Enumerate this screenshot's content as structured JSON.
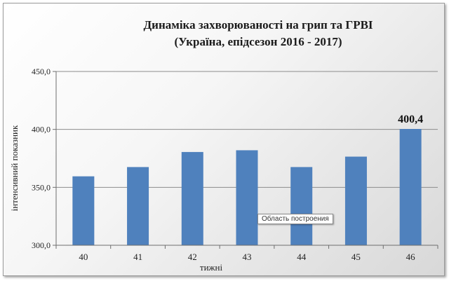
{
  "chart_data": {
    "type": "bar",
    "title_lines": [
      "Динаміка захворюваності на грип та ГРВІ",
      "(Україна, епідсезон 2016 - 2017)"
    ],
    "xlabel": "тижні",
    "ylabel": "інтенсивний показник",
    "categories": [
      "40",
      "41",
      "42",
      "43",
      "44",
      "45",
      "46"
    ],
    "values": [
      359.5,
      367.5,
      380.5,
      382.0,
      367.5,
      376.5,
      400.4
    ],
    "ylim": [
      300,
      450
    ],
    "yticks": [
      "300,0",
      "350,0",
      "400,0",
      "450,0"
    ],
    "ytick_values": [
      300,
      350,
      400,
      450
    ],
    "data_labels": [
      {
        "category": "46",
        "text": "400,4"
      }
    ],
    "bar_color": "#4F81BD",
    "grid": "horizontal",
    "legend": "none"
  },
  "tooltip": {
    "text": "Область построения"
  }
}
